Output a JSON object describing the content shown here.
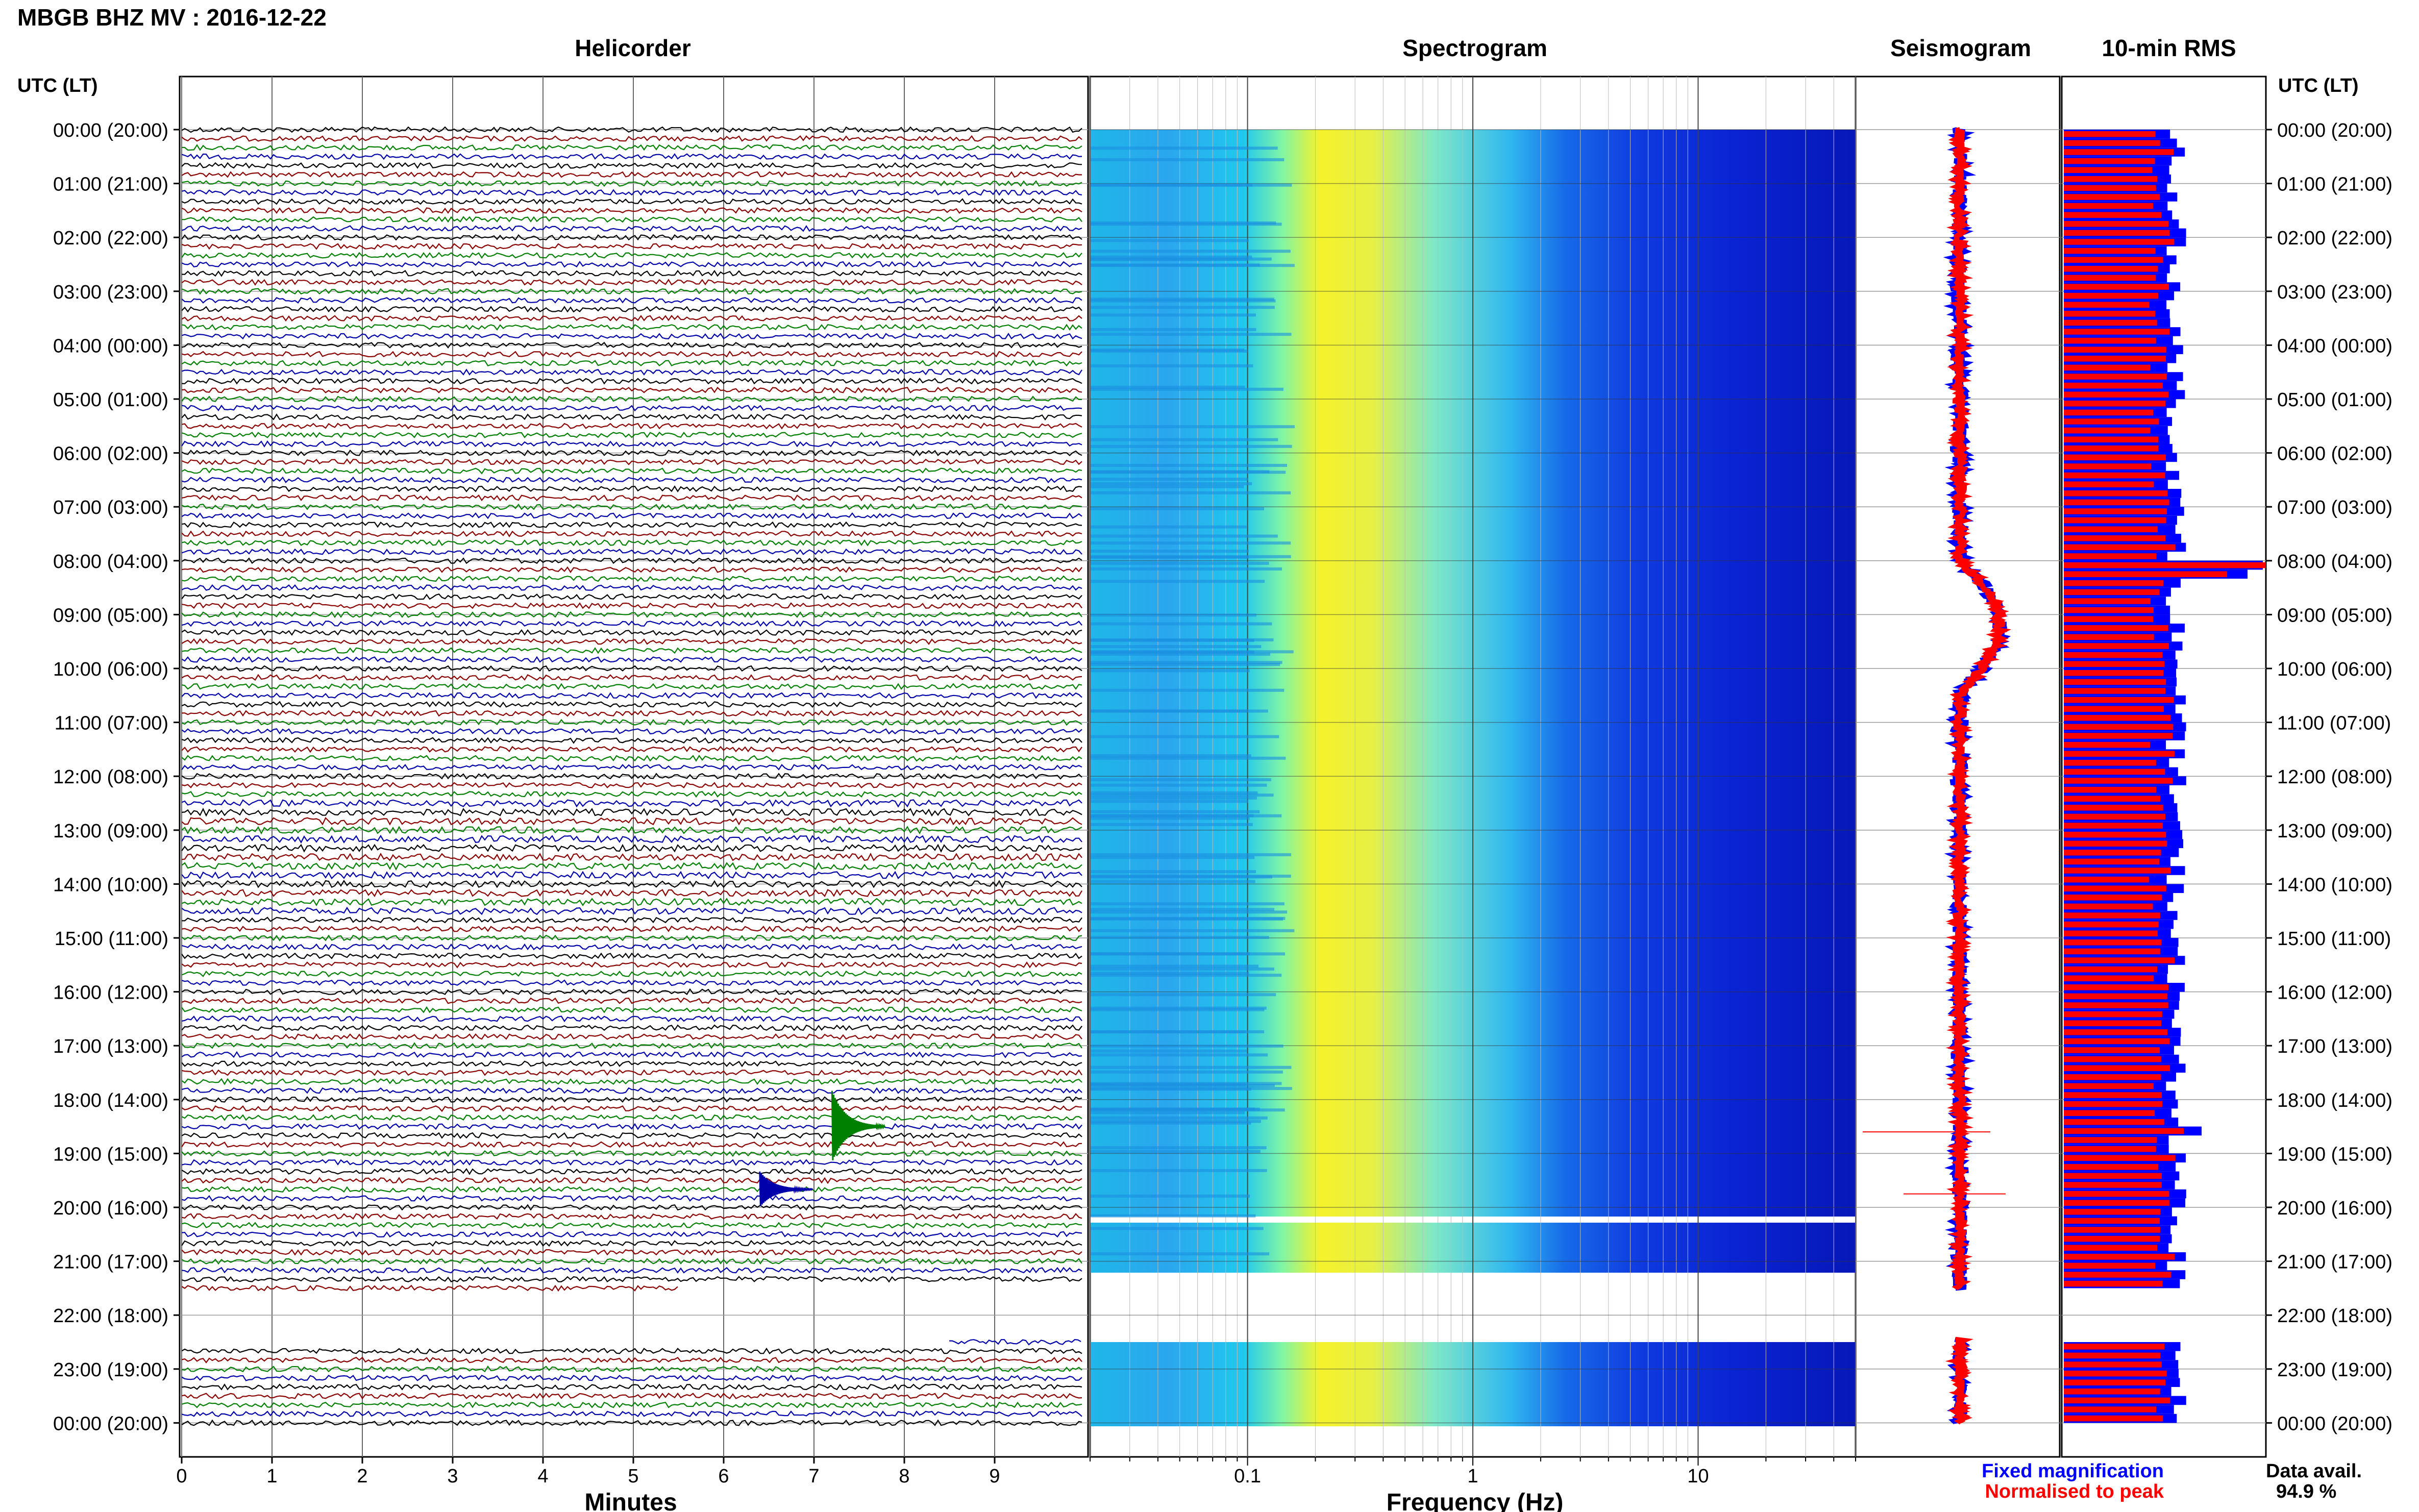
{
  "header": {
    "station_title": "MBGB BHZ MV : 2016-12-22"
  },
  "panels": {
    "helicorder_title": "Helicorder",
    "spectrogram_title": "Spectrogram",
    "seismogram_title": "Seismogram",
    "rms_title": "10-min RMS"
  },
  "axes": {
    "left_header": "UTC (LT)",
    "right_header": "UTC (LT)",
    "helicorder_xlabel": "Minutes",
    "spectrogram_xlabel": "Frequency (Hz)"
  },
  "legend": {
    "fixed_label": "Fixed magnification",
    "normalised_label": "Normalised to peak",
    "fixed_color": "#0000ff",
    "normalised_color": "#ff0000"
  },
  "availability": {
    "label": "Data avail.",
    "value": "94.9 %"
  },
  "colors": {
    "trace_colors": [
      "#000000",
      "#8b0000",
      "#008000",
      "#0000aa"
    ],
    "spectrogram_scale": [
      "#00007f",
      "#0000ff",
      "#007fff",
      "#00ffff",
      "#7fff7f",
      "#ffff00",
      "#ff7f00"
    ]
  },
  "chart_data": [
    {
      "type": "line",
      "title": "Helicorder",
      "xlabel": "Minutes",
      "x_ticks": [
        "0",
        "1",
        "2",
        "3",
        "4",
        "5",
        "6",
        "7",
        "8",
        "9"
      ],
      "xlim": [
        0,
        10
      ],
      "traces_per_hour": 6,
      "gap_utc": [
        "21:30",
        "22:30"
      ],
      "events": [
        {
          "minute": 7.2,
          "hour_utc": "18:30",
          "color": "green"
        },
        {
          "minute": 6.4,
          "hour_utc": "19:40",
          "color": "blue"
        }
      ]
    },
    {
      "type": "heatmap",
      "title": "Spectrogram",
      "xlabel": "Frequency (Hz)",
      "x_scale": "log",
      "xlim": [
        0.02,
        50
      ],
      "x_ticks": [
        "0.1",
        "1",
        "10"
      ]
    },
    {
      "type": "line",
      "title": "Seismogram",
      "series": [
        {
          "name": "Fixed magnification",
          "color": "#0000ff"
        },
        {
          "name": "Normalised to peak",
          "color": "#ff0000"
        }
      ],
      "transient_utc": "08:00"
    },
    {
      "type": "bar",
      "title": "10-min RMS",
      "orientation": "horizontal",
      "peak_utc": [
        "08:00",
        "18:30"
      ]
    }
  ],
  "y_ticks": [
    "00:00 (20:00)",
    "01:00 (21:00)",
    "02:00 (22:00)",
    "03:00 (23:00)",
    "04:00 (00:00)",
    "05:00 (01:00)",
    "06:00 (02:00)",
    "07:00 (03:00)",
    "08:00 (04:00)",
    "09:00 (05:00)",
    "10:00 (06:00)",
    "11:00 (07:00)",
    "12:00 (08:00)",
    "13:00 (09:00)",
    "14:00 (10:00)",
    "15:00 (11:00)",
    "16:00 (12:00)",
    "17:00 (13:00)",
    "18:00 (14:00)",
    "19:00 (15:00)",
    "20:00 (16:00)",
    "21:00 (17:00)",
    "22:00 (18:00)",
    "23:00 (19:00)",
    "00:00 (20:00)"
  ]
}
